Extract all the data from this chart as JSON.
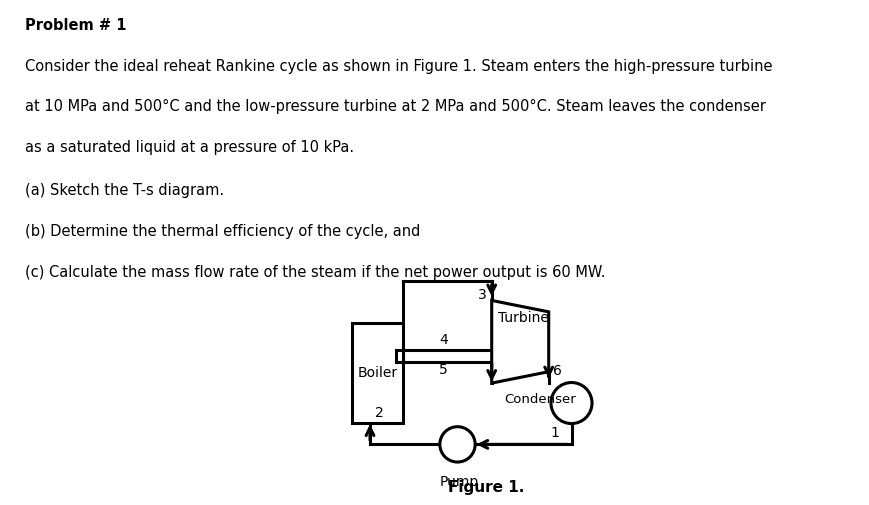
{
  "title": "Problem # 1",
  "line1": "Consider the ideal reheat Rankine cycle as shown in Figure 1. Steam enters the high-pressure turbine",
  "line2": "at 10 MPa and 500°C and the low-pressure turbine at 2 MPa and 500°C. Steam leaves the condenser",
  "line3": "as a saturated liquid at a pressure of 10 kPa.",
  "item_a": "(a) Sketch the T-s diagram.",
  "item_b": "(b) Determine the thermal efficiency of the cycle, and",
  "item_c": "(c) Calculate the mass flow rate of the steam if the net power output is 60 MW.",
  "figure_label": "Figure 1.",
  "bg_color": "#ffffff",
  "text_color": "#000000",
  "boiler_label": "Boiler",
  "turbine_label": "Turbine",
  "condenser_label": "Condenser",
  "pump_label": "Pump",
  "lw": 2.2
}
